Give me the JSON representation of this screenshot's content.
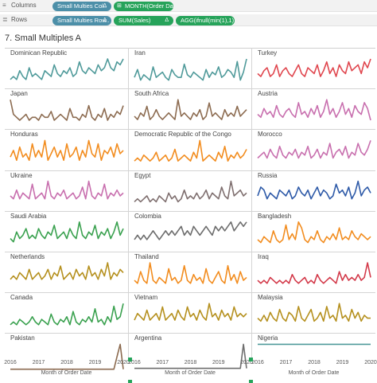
{
  "shelves": {
    "columns": {
      "label": "Columns",
      "pills": [
        {
          "text": "Small Multies Col..",
          "symbol": "Δ"
        },
        {
          "text": "MONTH(Order Da..",
          "symbol": "⊞"
        }
      ]
    },
    "rows": {
      "label": "Rows",
      "pills": [
        {
          "text": "Small Multies Row..",
          "symbol": "Δ"
        },
        {
          "text": "SUM(Sales)",
          "symbol": "Δ"
        },
        {
          "text": "AGG(ifnull(min(1),1))",
          "symbol": ""
        }
      ]
    }
  },
  "sheet_title": "7. Small Multiples A",
  "axis": {
    "title": "Month of Order Date",
    "ticks": [
      "2016",
      "2017",
      "2018",
      "2019",
      "2020"
    ]
  },
  "chart_data": {
    "type": "line",
    "x_label": "Month of Order Date",
    "x_ticks": [
      "2016",
      "2017",
      "2018",
      "2019",
      "2020"
    ],
    "panels": [
      {
        "name": "Dominican Republic",
        "color": "#4f9a9a",
        "values": [
          2,
          3,
          2,
          5,
          3,
          2,
          6,
          3,
          4,
          3,
          2,
          5,
          4,
          3,
          7,
          4,
          3,
          5,
          4,
          6,
          3,
          4,
          8,
          5,
          4,
          6,
          5,
          4,
          7,
          5,
          6,
          9,
          6,
          5,
          8,
          7,
          9
        ]
      },
      {
        "name": "Iran",
        "color": "#4f9a9a",
        "values": [
          3,
          6,
          2,
          4,
          3,
          2,
          7,
          3,
          4,
          5,
          3,
          2,
          6,
          4,
          3,
          3,
          8,
          4,
          3,
          5,
          4,
          3,
          2,
          6,
          3,
          5,
          4,
          7,
          3,
          4,
          6,
          5,
          3,
          9,
          2,
          5,
          10
        ]
      },
      {
        "name": "Turkey",
        "color": "#e0464e",
        "values": [
          4,
          3,
          5,
          6,
          3,
          4,
          7,
          3,
          5,
          6,
          4,
          3,
          5,
          7,
          4,
          3,
          6,
          5,
          4,
          7,
          3,
          5,
          8,
          4,
          6,
          3,
          7,
          5,
          4,
          8,
          5,
          6,
          7,
          4,
          8,
          6,
          9
        ]
      },
      {
        "name": "Japan",
        "color": "#8c6b50",
        "values": [
          9,
          4,
          3,
          2,
          3,
          4,
          2,
          3,
          3,
          2,
          4,
          3,
          3,
          5,
          2,
          3,
          4,
          3,
          2,
          6,
          3,
          3,
          2,
          4,
          3,
          7,
          3,
          2,
          4,
          3,
          6,
          2,
          4,
          3,
          5,
          4,
          7
        ]
      },
      {
        "name": "South Africa",
        "color": "#8c6b50",
        "values": [
          3,
          2,
          4,
          3,
          6,
          2,
          3,
          5,
          3,
          2,
          3,
          4,
          3,
          2,
          8,
          3,
          4,
          3,
          2,
          4,
          3,
          5,
          2,
          3,
          7,
          3,
          4,
          3,
          2,
          5,
          3,
          4,
          3,
          6,
          3,
          4,
          5
        ]
      },
      {
        "name": "Austria",
        "color": "#c86fae",
        "values": [
          4,
          3,
          6,
          4,
          5,
          3,
          7,
          4,
          3,
          5,
          6,
          4,
          3,
          8,
          4,
          5,
          3,
          6,
          4,
          7,
          3,
          5,
          9,
          4,
          6,
          3,
          5,
          8,
          4,
          6,
          3,
          7,
          5,
          4,
          8,
          6,
          2
        ]
      },
      {
        "name": "Honduras",
        "color": "#f28c1e",
        "values": [
          3,
          5,
          2,
          6,
          3,
          4,
          2,
          7,
          3,
          5,
          3,
          8,
          2,
          4,
          6,
          3,
          5,
          2,
          7,
          3,
          4,
          6,
          2,
          5,
          3,
          8,
          4,
          3,
          7,
          2,
          5,
          4,
          6,
          3,
          7,
          4,
          5
        ]
      },
      {
        "name": "Democratic Republic of the Congo",
        "color": "#f28c1e",
        "values": [
          2,
          3,
          2,
          4,
          3,
          2,
          3,
          5,
          2,
          3,
          4,
          2,
          3,
          6,
          2,
          3,
          4,
          3,
          2,
          5,
          3,
          9,
          2,
          3,
          4,
          3,
          2,
          5,
          3,
          7,
          2,
          4,
          3,
          5,
          3,
          4,
          6
        ]
      },
      {
        "name": "Morocco",
        "color": "#c86fae",
        "values": [
          3,
          4,
          5,
          3,
          6,
          4,
          3,
          7,
          4,
          3,
          5,
          4,
          6,
          3,
          5,
          4,
          7,
          3,
          4,
          6,
          3,
          5,
          4,
          8,
          3,
          5,
          6,
          4,
          7,
          3,
          5,
          4,
          8,
          5,
          4,
          6,
          9
        ]
      },
      {
        "name": "Ukraine",
        "color": "#c86fae",
        "values": [
          4,
          3,
          6,
          3,
          5,
          4,
          3,
          8,
          3,
          4,
          5,
          3,
          9,
          4,
          3,
          5,
          4,
          6,
          3,
          4,
          5,
          3,
          4,
          7,
          3,
          9,
          4,
          3,
          5,
          4,
          8,
          3,
          5,
          4,
          6,
          4,
          5
        ]
      },
      {
        "name": "Egypt",
        "color": "#7f6f6f",
        "values": [
          2,
          3,
          2,
          3,
          4,
          2,
          3,
          2,
          4,
          3,
          2,
          5,
          3,
          4,
          2,
          3,
          6,
          3,
          4,
          3,
          5,
          3,
          4,
          6,
          3,
          5,
          4,
          3,
          7,
          4,
          3,
          9,
          4,
          5,
          6,
          4,
          5
        ]
      },
      {
        "name": "Russia",
        "color": "#2e5aa8",
        "values": [
          4,
          7,
          6,
          3,
          5,
          4,
          3,
          6,
          5,
          4,
          6,
          3,
          4,
          7,
          5,
          4,
          6,
          3,
          5,
          7,
          4,
          6,
          5,
          3,
          4,
          8,
          5,
          6,
          4,
          7,
          3,
          5,
          9,
          4,
          6,
          7,
          5
        ]
      },
      {
        "name": "Saudi Arabia",
        "color": "#3aa14f",
        "values": [
          3,
          2,
          5,
          3,
          4,
          6,
          3,
          4,
          3,
          6,
          4,
          3,
          5,
          4,
          7,
          3,
          4,
          5,
          3,
          6,
          4,
          3,
          8,
          4,
          3,
          5,
          4,
          7,
          3,
          5,
          4,
          6,
          3,
          5,
          8,
          4,
          6
        ]
      },
      {
        "name": "Colombia",
        "color": "#6e6e6e",
        "values": [
          2,
          3,
          2,
          3,
          2,
          3,
          4,
          3,
          2,
          3,
          4,
          3,
          4,
          3,
          4,
          5,
          3,
          4,
          3,
          5,
          4,
          3,
          4,
          5,
          4,
          3,
          5,
          4,
          5,
          4,
          5,
          6,
          4,
          5,
          6,
          5,
          6
        ]
      },
      {
        "name": "Bangladesh",
        "color": "#f28c1e",
        "values": [
          3,
          2,
          4,
          3,
          2,
          6,
          3,
          2,
          3,
          8,
          3,
          5,
          3,
          9,
          7,
          3,
          2,
          4,
          3,
          6,
          3,
          2,
          4,
          3,
          5,
          3,
          7,
          3,
          4,
          3,
          6,
          4,
          3,
          5,
          4,
          3,
          4
        ]
      },
      {
        "name": "Netherlands",
        "color": "#b5901e",
        "values": [
          3,
          4,
          3,
          5,
          4,
          3,
          6,
          3,
          4,
          5,
          3,
          4,
          6,
          3,
          5,
          4,
          7,
          3,
          4,
          5,
          3,
          6,
          4,
          5,
          3,
          7,
          4,
          5,
          3,
          6,
          4,
          8,
          3,
          5,
          4,
          6,
          5
        ]
      },
      {
        "name": "Thailand",
        "color": "#f28c1e",
        "values": [
          3,
          2,
          6,
          3,
          2,
          9,
          3,
          2,
          4,
          3,
          2,
          7,
          3,
          4,
          2,
          3,
          8,
          3,
          2,
          5,
          3,
          4,
          2,
          7,
          3,
          2,
          4,
          6,
          3,
          2,
          8,
          3,
          5,
          2,
          6,
          3,
          4
        ]
      },
      {
        "name": "Iraq",
        "color": "#d33a4a",
        "values": [
          3,
          2,
          3,
          2,
          4,
          3,
          2,
          3,
          2,
          3,
          2,
          5,
          3,
          2,
          3,
          4,
          2,
          3,
          2,
          5,
          3,
          2,
          3,
          4,
          3,
          2,
          6,
          3,
          5,
          3,
          4,
          3,
          5,
          3,
          4,
          9,
          4
        ]
      },
      {
        "name": "Canada",
        "color": "#3aa14f",
        "values": [
          2,
          3,
          2,
          4,
          3,
          2,
          3,
          5,
          3,
          2,
          4,
          3,
          2,
          6,
          3,
          2,
          4,
          3,
          5,
          2,
          7,
          3,
          2,
          4,
          3,
          5,
          3,
          8,
          3,
          4,
          2,
          5,
          3,
          9,
          4,
          5,
          10
        ]
      },
      {
        "name": "Vietnam",
        "color": "#b5901e",
        "values": [
          3,
          5,
          4,
          3,
          6,
          3,
          4,
          5,
          3,
          7,
          3,
          4,
          5,
          3,
          6,
          4,
          3,
          7,
          4,
          5,
          3,
          6,
          4,
          3,
          8,
          4,
          5,
          3,
          6,
          4,
          5,
          3,
          7,
          4,
          5,
          4,
          5
        ]
      },
      {
        "name": "Malaysia",
        "color": "#b5901e",
        "values": [
          4,
          3,
          5,
          3,
          6,
          4,
          3,
          7,
          4,
          3,
          6,
          5,
          3,
          8,
          4,
          3,
          5,
          7,
          3,
          4,
          6,
          3,
          8,
          4,
          5,
          3,
          9,
          4,
          5,
          3,
          7,
          4,
          6,
          3,
          5,
          4,
          4
        ]
      },
      {
        "name": "Pakistan",
        "color": "#8c6b50",
        "values": [
          1,
          1,
          1,
          1,
          1,
          1,
          1,
          1,
          1,
          1,
          1,
          1,
          1,
          1,
          1,
          1,
          1,
          1,
          1,
          1,
          1,
          1,
          1,
          1,
          1,
          1,
          1,
          1,
          1,
          1,
          1,
          1,
          1,
          1,
          5,
          9,
          1
        ]
      },
      {
        "name": "Argentina",
        "color": "#6e6e6e",
        "values": [
          1,
          1,
          1,
          1,
          1,
          1,
          1,
          1,
          1,
          1,
          1,
          1,
          1,
          1,
          1,
          1,
          1,
          1,
          1,
          1,
          1,
          1,
          1,
          1,
          1,
          1,
          1,
          1,
          1,
          1,
          1,
          1,
          1,
          1,
          1,
          7,
          1
        ]
      },
      {
        "name": "Nigeria",
        "color": "#4f9a9a",
        "values": [
          1,
          1,
          1,
          1,
          1,
          1,
          1,
          1,
          1,
          1,
          1,
          1,
          1,
          1,
          1,
          1,
          1,
          1,
          1,
          1,
          1,
          1,
          1,
          1,
          1,
          1,
          1,
          1,
          1,
          1,
          1,
          1,
          1,
          1,
          1,
          1,
          1
        ]
      }
    ]
  }
}
